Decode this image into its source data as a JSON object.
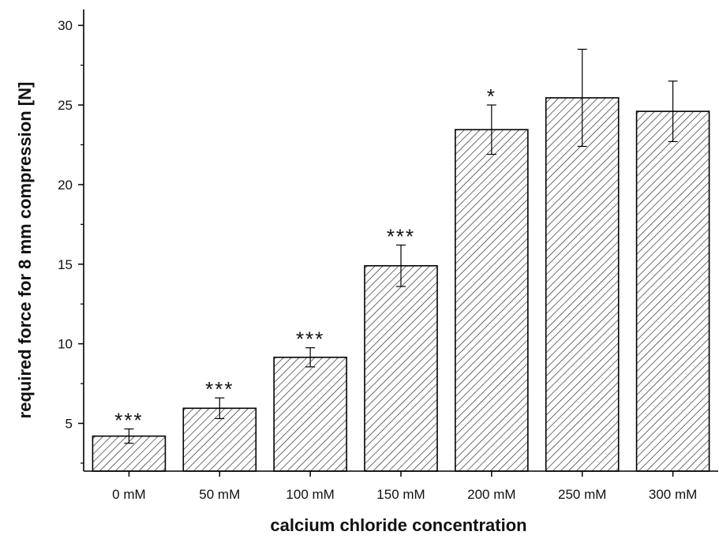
{
  "chart_data": {
    "type": "bar",
    "title": "",
    "xlabel": "calcium chloride concentration",
    "ylabel": "required force for 8 mm compression [N]",
    "categories": [
      "0 mM",
      "50 mM",
      "100 mM",
      "150 mM",
      "200 mM",
      "250 mM",
      "300 mM"
    ],
    "values": [
      4.2,
      5.95,
      9.15,
      14.9,
      23.45,
      25.45,
      24.6
    ],
    "error": [
      0.45,
      0.65,
      0.6,
      1.3,
      1.55,
      3.05,
      1.9
    ],
    "annotations": [
      "***",
      "***",
      "***",
      "***",
      "*",
      "",
      ""
    ],
    "ylim": [
      2.0,
      31.0
    ],
    "yticks": [
      5,
      10,
      15,
      20,
      25,
      30
    ],
    "grid": false,
    "bar_fill": "hatched",
    "colors": {
      "stroke": "#000000",
      "hatch": "#222222",
      "background": "#ffffff"
    }
  }
}
